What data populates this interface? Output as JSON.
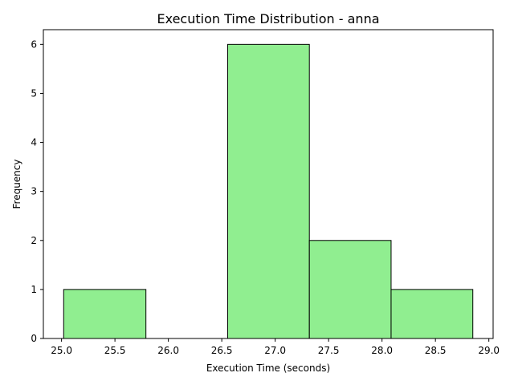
{
  "chart_data": {
    "type": "bar",
    "subtype": "histogram",
    "title": "Execution Time Distribution - anna",
    "xlabel": "Execution Time (seconds)",
    "ylabel": "Frequency",
    "bins": [
      {
        "start": 25.02,
        "end": 25.79,
        "count": 1
      },
      {
        "start": 25.79,
        "end": 26.555,
        "count": 0
      },
      {
        "start": 26.555,
        "end": 27.32,
        "count": 6
      },
      {
        "start": 27.32,
        "end": 28.085,
        "count": 2
      },
      {
        "start": 28.085,
        "end": 28.85,
        "count": 1
      }
    ],
    "xlim": [
      24.83,
      29.04
    ],
    "ylim": [
      0,
      6.3
    ],
    "xticks": [
      "25.0",
      "25.5",
      "26.0",
      "26.5",
      "27.0",
      "27.5",
      "28.0",
      "28.5",
      "29.0"
    ],
    "yticks": [
      "0",
      "1",
      "2",
      "3",
      "4",
      "5",
      "6"
    ],
    "grid": false,
    "bar_color": "#90ee90",
    "edge_color": "#000000"
  }
}
